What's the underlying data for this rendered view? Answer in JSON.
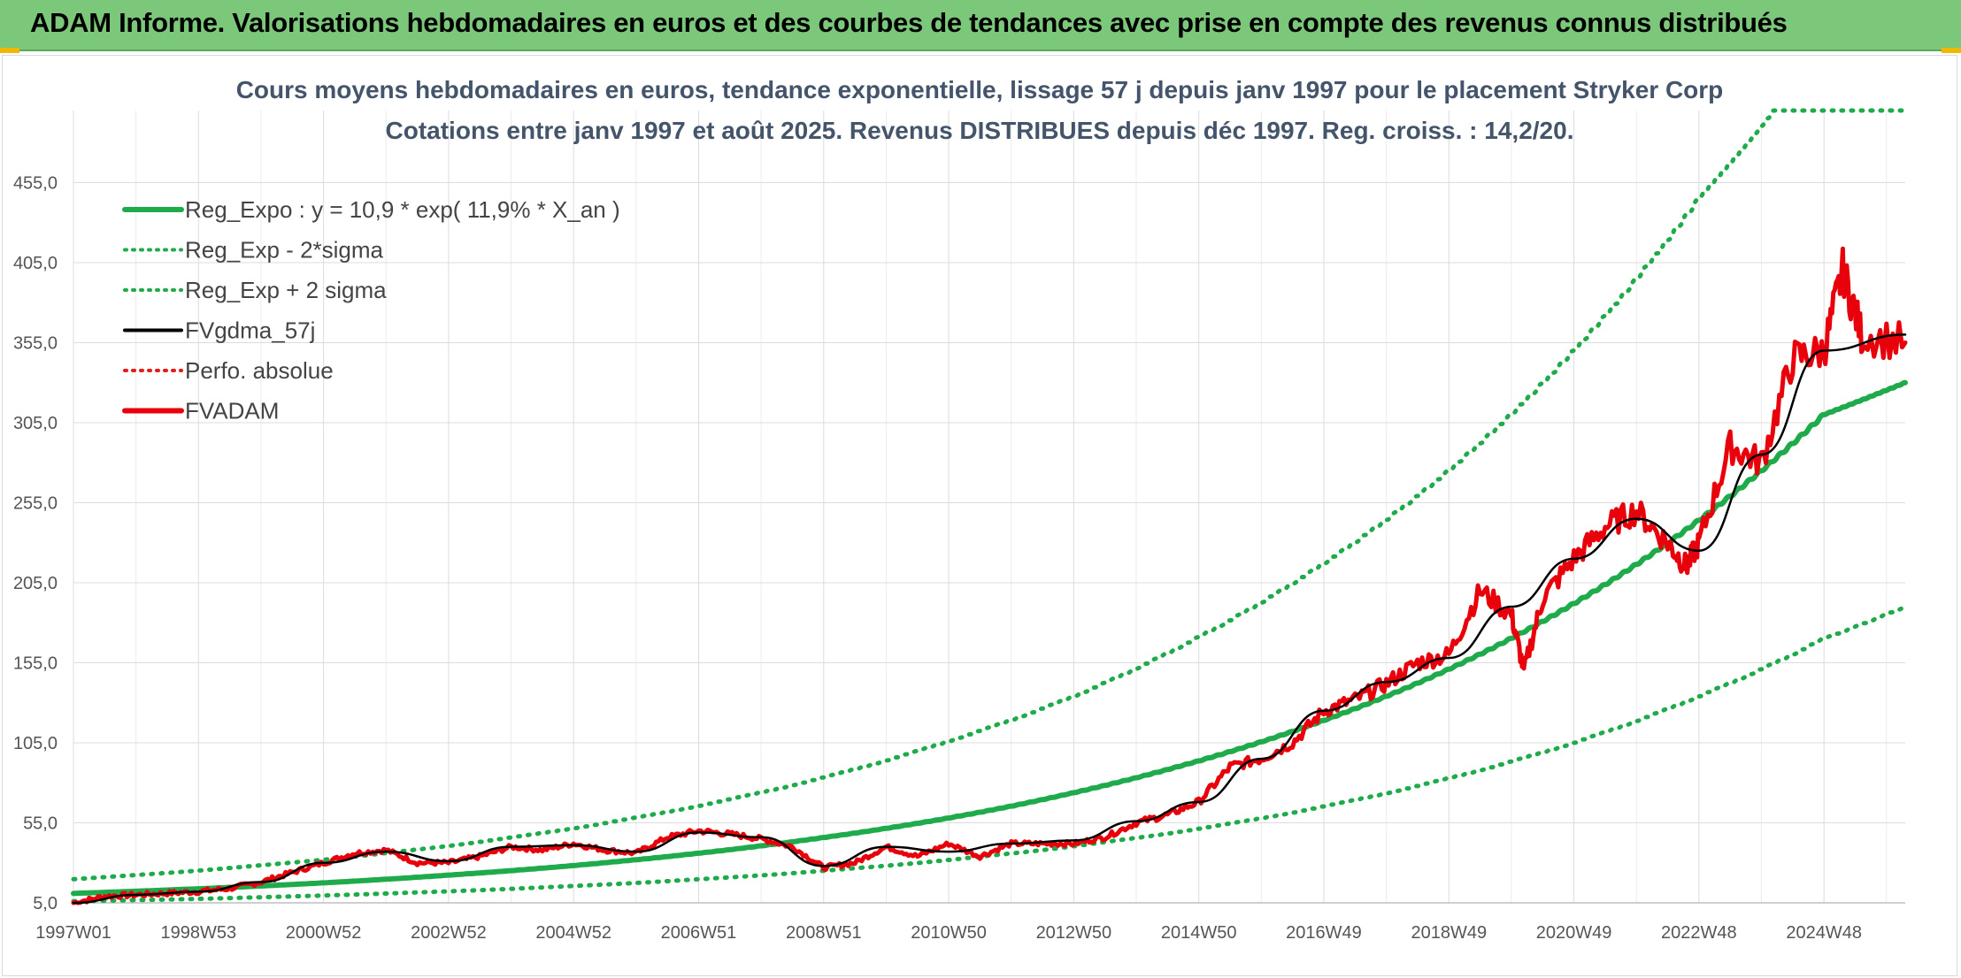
{
  "header": {
    "title": "ADAM Informe. Valorisations hebdomadaires en euros et des courbes de tendances avec prise en compte des revenus connus distribués"
  },
  "colors": {
    "header_bg": "#7cc87a",
    "reg": "#1faa4b",
    "fv57": "#000000",
    "perfo": "#e11d1d",
    "fvadam": "#e8000b"
  },
  "chart_data": {
    "type": "line",
    "title_line1": "Cours moyens hebdomadaires en euros, tendance exponentielle, lissage 57 j depuis janv 1997 pour le placement Stryker Corp",
    "title_line2": "Cotations entre janv 1997 et août 2025. Revenus DISTRIBUES depuis déc 1997. Reg. croiss. : 14,2/20.",
    "ylim": [
      5,
      500
    ],
    "y_ticks": [
      "5,0",
      "55,0",
      "105,0",
      "155,0",
      "205,0",
      "255,0",
      "305,0",
      "355,0",
      "405,0",
      "455,0"
    ],
    "y_tick_values": [
      5,
      55,
      105,
      155,
      205,
      255,
      305,
      355,
      405,
      455
    ],
    "x_ticks": [
      "1997W01",
      "1998W53",
      "2000W52",
      "2002W52",
      "2004W52",
      "2006W51",
      "2008W51",
      "2010W50",
      "2012W50",
      "2014W50",
      "2016W49",
      "2018W49",
      "2020W49",
      "2022W48",
      "2024W48"
    ],
    "x_tick_years": [
      1997.0,
      1999.0,
      2001.0,
      2003.0,
      2005.0,
      2007.0,
      2009.0,
      2011.0,
      2013.0,
      2015.0,
      2017.0,
      2019.0,
      2021.0,
      2023.0,
      2025.0
    ],
    "x_range": [
      1997.0,
      2026.3
    ],
    "legend": [
      {
        "label": "Reg_Expo : y = 10,9 * exp( 11,9% *  X_an )",
        "style": "solid-thick",
        "color": "#1faa4b"
      },
      {
        "label": "Reg_Exp - 2*sigma",
        "style": "dotted",
        "color": "#1faa4b"
      },
      {
        "label": "Reg_Exp + 2 sigma",
        "style": "dotted",
        "color": "#1faa4b"
      },
      {
        "label": "FVgdma_57j",
        "style": "solid",
        "color": "#000000"
      },
      {
        "label": "Perfo. absolue",
        "style": "dotted",
        "color": "#e11d1d"
      },
      {
        "label": "FVADAM",
        "style": "solid-thick",
        "color": "#e8000b"
      }
    ],
    "series": [
      {
        "name": "Reg_Expo : y = 10,9 * exp( 11,9% *  X_an )",
        "x": [
          1997,
          1999,
          2001,
          2003,
          2005,
          2007,
          2009,
          2011,
          2013,
          2015,
          2017,
          2019,
          2021,
          2023,
          2025,
          2026.3
        ],
        "values": [
          10.9,
          13.8,
          17.5,
          22.3,
          28.3,
          36,
          45.8,
          58,
          73.8,
          93.7,
          119,
          151,
          192,
          244,
          310,
          330
        ]
      },
      {
        "name": "Reg_Exp - 2*sigma",
        "x": [
          1997,
          1999,
          2001,
          2003,
          2005,
          2007,
          2009,
          2011,
          2013,
          2015,
          2017,
          2019,
          2021,
          2023,
          2025,
          2026.3
        ],
        "values": [
          6,
          7.5,
          9.6,
          12.2,
          15.5,
          19.7,
          25,
          31.8,
          40.4,
          51.3,
          65.2,
          82.8,
          105,
          134,
          170,
          190
        ]
      },
      {
        "name": "Reg_Exp + 2 sigma",
        "x": [
          1997,
          1999,
          2001,
          2003,
          2005,
          2007,
          2009,
          2011,
          2013,
          2015,
          2017,
          2019,
          2021,
          2023,
          2024.2,
          2025,
          2026.3
        ],
        "values": [
          19.8,
          25.2,
          32,
          40.6,
          51.6,
          65.6,
          83.3,
          106,
          134,
          171,
          217,
          275,
          350,
          445,
          500,
          500,
          500
        ]
      },
      {
        "name": "FVADAM",
        "x": [
          1997,
          1997.5,
          1998,
          1998.5,
          1999,
          1999.5,
          2000,
          2000.5,
          2001,
          2001.5,
          2002,
          2002.5,
          2003,
          2003.5,
          2004,
          2004.5,
          2005,
          2005.5,
          2006,
          2006.5,
          2007,
          2007.5,
          2008,
          2008.5,
          2009,
          2009.5,
          2010,
          2010.5,
          2011,
          2011.5,
          2012,
          2012.5,
          2013,
          2013.5,
          2014,
          2014.5,
          2015,
          2015.5,
          2016,
          2016.5,
          2017,
          2017.5,
          2018,
          2018.5,
          2019,
          2019.5,
          2020,
          2020.2,
          2020.5,
          2021,
          2021.5,
          2022,
          2022.5,
          2022.8,
          2023,
          2023.5,
          2024,
          2024.5,
          2025,
          2025.3,
          2025.6,
          2026.3
        ],
        "values": [
          5,
          9,
          10,
          11,
          12,
          14,
          18,
          24,
          30,
          36,
          38,
          30,
          30,
          34,
          40,
          38,
          42,
          38,
          36,
          46,
          50,
          48,
          45,
          40,
          27,
          30,
          40,
          34,
          42,
          34,
          42,
          42,
          42,
          46,
          55,
          60,
          68,
          90,
          95,
          105,
          125,
          132,
          142,
          155,
          160,
          200,
          185,
          150,
          195,
          220,
          240,
          250,
          230,
          215,
          230,
          290,
          280,
          345,
          350,
          400,
          360,
          355
        ]
      },
      {
        "name": "FVgdma_57j",
        "x": [
          1997,
          1998,
          1999,
          2000,
          2001,
          2002,
          2003,
          2004,
          2005,
          2006,
          2007,
          2008,
          2009,
          2010,
          2011,
          2012,
          2013,
          2014,
          2015,
          2016,
          2017,
          2018,
          2019,
          2020,
          2021,
          2022,
          2023,
          2024,
          2025,
          2026.3
        ],
        "values": [
          5,
          10,
          12,
          18,
          30,
          37,
          31,
          40,
          41,
          37,
          49,
          46,
          28,
          40,
          37,
          42,
          44,
          56,
          68,
          95,
          125,
          143,
          158,
          190,
          220,
          245,
          225,
          285,
          350,
          360
        ]
      }
    ],
    "grid": true,
    "legend_position": "top-left"
  }
}
